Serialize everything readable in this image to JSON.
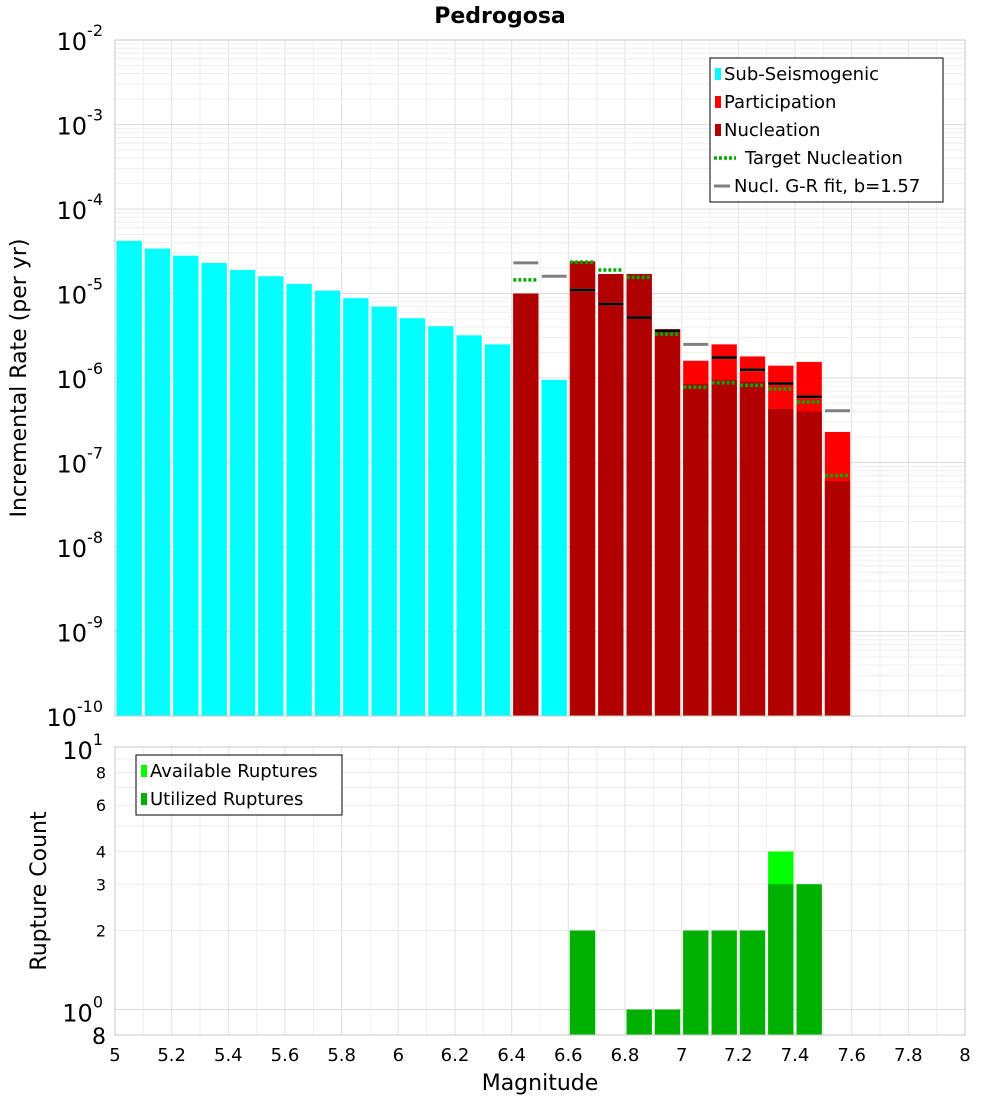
{
  "chart_data": [
    {
      "type": "bar",
      "title": "Pedrogosa",
      "ylabel": "Incremental Rate (per yr)",
      "xlabel": "",
      "xlim": [
        5,
        8
      ],
      "ylim": [
        1e-10,
        0.01
      ],
      "y_scale": "log",
      "grid": true,
      "bin_width": 0.1,
      "y_ticks": [
        {
          "base": "10",
          "exp": "-10"
        },
        {
          "base": "10",
          "exp": "-9"
        },
        {
          "base": "10",
          "exp": "-8"
        },
        {
          "base": "10",
          "exp": "-7"
        },
        {
          "base": "10",
          "exp": "-6"
        },
        {
          "base": "10",
          "exp": "-5"
        },
        {
          "base": "10",
          "exp": "-4"
        },
        {
          "base": "10",
          "exp": "-3"
        },
        {
          "base": "10",
          "exp": "-2"
        }
      ],
      "legend_position": "top-right",
      "legend": [
        {
          "label": "Sub-Seismogenic",
          "color": "#00ffff",
          "kind": "box"
        },
        {
          "label": "Participation",
          "color": "#ff0000",
          "kind": "box"
        },
        {
          "label": "Nucleation",
          "color": "#b00000",
          "kind": "box"
        },
        {
          "label": "Target Nucleation",
          "color": "#00aa00",
          "kind": "dotted"
        },
        {
          "label": "Nucl. G-R fit, b=1.57",
          "color": "#808080",
          "kind": "line"
        }
      ],
      "series": [
        {
          "name": "Sub-Seismogenic",
          "color": "#00ffff",
          "x": [
            5.05,
            5.15,
            5.25,
            5.35,
            5.45,
            5.55,
            5.65,
            5.75,
            5.85,
            5.95,
            6.05,
            6.15,
            6.25,
            6.35,
            6.55
          ],
          "values": [
            4.2e-05,
            3.4e-05,
            2.8e-05,
            2.3e-05,
            1.9e-05,
            1.6e-05,
            1.3e-05,
            1.08e-05,
            8.8e-06,
            7e-06,
            5.1e-06,
            4.1e-06,
            3.2e-06,
            2.5e-06,
            9.5e-07
          ]
        },
        {
          "name": "Participation",
          "color": "#ff0000",
          "x": [
            6.45,
            6.65,
            6.75,
            6.85,
            6.95,
            7.05,
            7.15,
            7.25,
            7.35,
            7.45,
            7.55
          ],
          "values": [
            1e-05,
            2.4e-05,
            1.7e-05,
            1.7e-05,
            3.8e-06,
            1.6e-06,
            2.5e-06,
            1.8e-06,
            1.4e-06,
            1.55e-06,
            2.3e-07
          ]
        },
        {
          "name": "Nucleation",
          "color": "#b00000",
          "x": [
            6.45,
            6.65,
            6.75,
            6.85,
            6.95,
            7.05,
            7.15,
            7.25,
            7.35,
            7.45,
            7.55
          ],
          "values": [
            1e-05,
            2.4e-05,
            1.7e-05,
            1.7e-05,
            3.8e-06,
            8.5e-07,
            9.5e-07,
            9e-07,
            4.3e-07,
            4e-07,
            6e-08
          ]
        },
        {
          "name": "Target Nucleation",
          "color": "#00aa00",
          "x": [
            6.45,
            6.65,
            6.75,
            6.85,
            6.95,
            7.05,
            7.15,
            7.25,
            7.35,
            7.45,
            7.55
          ],
          "values": [
            1.45e-05,
            2.35e-05,
            1.9e-05,
            1.55e-05,
            3.3e-06,
            7.8e-07,
            8.8e-07,
            8.2e-07,
            7.4e-07,
            5.2e-07,
            7e-08
          ]
        },
        {
          "name": "Nucl. G-R fit, b=1.57",
          "color": "#808080",
          "x": [
            6.45,
            6.55,
            6.65,
            6.75,
            6.85,
            6.95,
            7.05,
            7.15,
            7.25,
            7.35,
            7.45,
            7.55
          ],
          "values": [
            2.3e-05,
            1.6e-05,
            1.1e-05,
            7.5e-06,
            5.2e-06,
            3.6e-06,
            2.5e-06,
            1.75e-06,
            1.25e-06,
            8.6e-07,
            6e-07,
            4.1e-07
          ]
        },
        {
          "name": "",
          "color": "#000000",
          "x": [
            6.65,
            6.75,
            6.85,
            6.95,
            7.15,
            7.25,
            7.35,
            7.45
          ],
          "values": [
            1.1e-05,
            7.5e-06,
            5.2e-06,
            3.6e-06,
            1.75e-06,
            1.25e-06,
            8.6e-07,
            6e-07
          ]
        }
      ]
    },
    {
      "type": "bar",
      "title": "",
      "ylabel": "Rupture Count",
      "xlabel": "Magnitude",
      "xlim": [
        5,
        8
      ],
      "ylim": [
        0.8,
        10
      ],
      "y_scale": "log",
      "grid": true,
      "bin_width": 0.1,
      "x_ticks": [
        "5",
        "5.2",
        "5.4",
        "5.6",
        "5.8",
        "6",
        "6.2",
        "6.4",
        "6.6",
        "6.8",
        "7",
        "7.2",
        "7.4",
        "7.6",
        "7.8",
        "8"
      ],
      "y_major_ticks": [
        {
          "value": 1,
          "base": "10",
          "exp": "0"
        },
        {
          "value": 10,
          "base": "10",
          "exp": "1"
        }
      ],
      "y_minor_ticks": [
        {
          "value": 0.8,
          "label": "8"
        },
        {
          "value": 2,
          "label": "2"
        },
        {
          "value": 3,
          "label": "3"
        },
        {
          "value": 4,
          "label": "4"
        },
        {
          "value": 6,
          "label": "6"
        },
        {
          "value": 8,
          "label": "8"
        }
      ],
      "legend_position": "top-left",
      "legend": [
        {
          "label": "Available Ruptures",
          "color": "#00ff00",
          "kind": "box"
        },
        {
          "label": "Utilized Ruptures",
          "color": "#00b000",
          "kind": "box"
        }
      ],
      "series": [
        {
          "name": "Available Ruptures",
          "color": "#00ff00",
          "x": [
            6.65,
            6.85,
            6.95,
            7.05,
            7.15,
            7.25,
            7.35,
            7.45
          ],
          "values": [
            2,
            1,
            1,
            2,
            2,
            2,
            4,
            3
          ]
        },
        {
          "name": "Utilized Ruptures",
          "color": "#00b000",
          "x": [
            6.65,
            6.85,
            6.95,
            7.05,
            7.15,
            7.25,
            7.35,
            7.45
          ],
          "values": [
            2,
            1,
            1,
            2,
            2,
            2,
            3,
            3
          ]
        }
      ]
    }
  ]
}
